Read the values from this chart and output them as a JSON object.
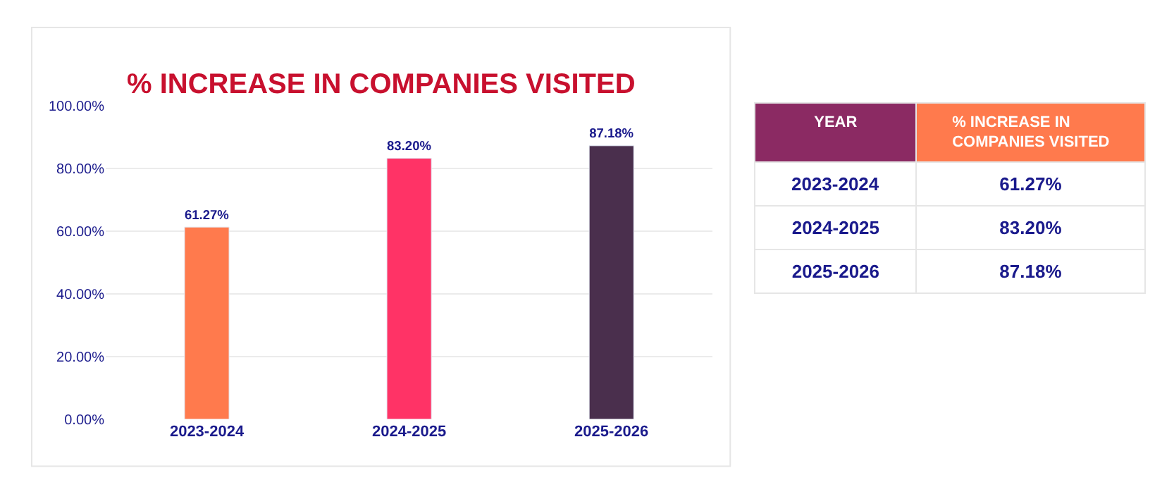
{
  "chart_data": [
    {
      "type": "bar",
      "title": "% INCREASE IN COMPANIES VISITED",
      "categories": [
        "2023-2024",
        "2024-2025",
        "2025-2026"
      ],
      "values": [
        61.27,
        83.2,
        87.18
      ],
      "colors": [
        "#ff7a4d",
        "#ff3366",
        "#4a2f4d"
      ],
      "value_labels": [
        "61.27%",
        "83.20%",
        "87.18%"
      ],
      "ylim": [
        0,
        100
      ],
      "yticks": [
        {
          "value": 0,
          "label": "0.00%"
        },
        {
          "value": 20,
          "label": "20.00%"
        },
        {
          "value": 40,
          "label": "40.00%"
        },
        {
          "value": 60,
          "label": "60.00%"
        },
        {
          "value": 80,
          "label": "80.00%"
        },
        {
          "value": 100,
          "label": "100.00%"
        }
      ],
      "grid": "y"
    },
    {
      "type": "other",
      "xlabel": "YEAR",
      "ylabel": "% INCREASE IN COMPANIES VISITED",
      "categories": [
        "2023-2024",
        "2024-2025",
        "2025-2026"
      ],
      "value_labels": [
        "61.27%",
        "83.20%",
        "87.18%"
      ]
    }
  ]
}
